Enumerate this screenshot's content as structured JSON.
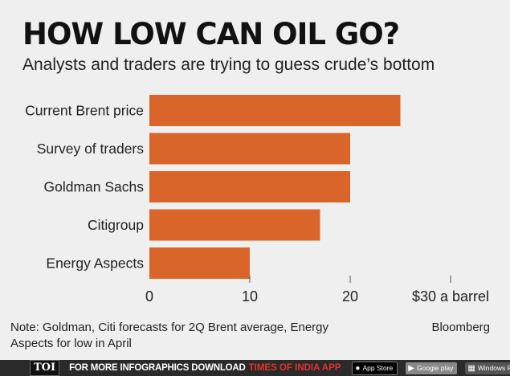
{
  "header": {
    "title": "HOW LOW CAN OIL GO?",
    "subtitle": "Analysts and traders are trying to guess crude’s bottom"
  },
  "chart_data": {
    "type": "bar",
    "orientation": "horizontal",
    "title": "HOW LOW CAN OIL GO?",
    "subtitle": "Analysts and traders are trying to guess crude’s bottom",
    "categories": [
      "Current Brent price",
      "Survey of traders",
      "Goldman Sachs",
      "Citigroup",
      "Energy Aspects"
    ],
    "values": [
      25,
      20,
      20,
      17,
      10
    ],
    "xlim": [
      0,
      30
    ],
    "x_ticks": [
      0,
      10,
      20,
      30
    ],
    "x_tick_labels": [
      "0",
      "10",
      "20",
      "$30 a barrel"
    ],
    "bar_color": "#d9652b",
    "grid": false,
    "legend": "none"
  },
  "footer": {
    "note": "Note: Goldman, Citi forecasts for 2Q Brent average, Energy Aspects for low in April",
    "source": "Bloomberg",
    "banner": {
      "logo": "TOI",
      "text": "FOR MORE  INFOGRAPHICS DOWNLOAD",
      "brand": "TIMES OF INDIA APP",
      "apple_badge": "App Store",
      "google_badge": "Google play",
      "windows_badge": "Windows Phone"
    }
  },
  "colors": {
    "background": "#efefef",
    "bar": "#d9652b",
    "banner": "#2a2a2a",
    "brand_red": "#e0342a"
  }
}
